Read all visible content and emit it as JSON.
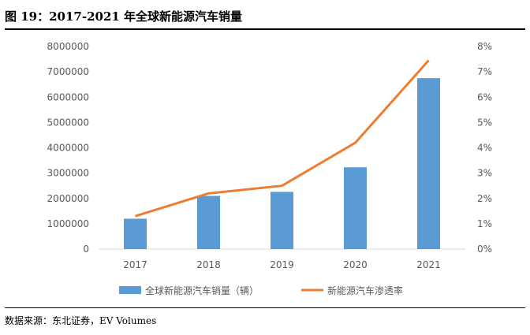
{
  "figure": {
    "title": "图 19：2017-2021 年全球新能源汽车销量",
    "source": "数据来源：东北证券，EV Volumes"
  },
  "colors": {
    "bar": "#5b9bd5",
    "line": "#ed7d31",
    "axis_text": "#595959",
    "axis_line": "#d9d9d9"
  },
  "chart_data": {
    "type": "bar",
    "title": "2017-2021 年全球新能源汽车销量",
    "categories": [
      "2017",
      "2018",
      "2019",
      "2020",
      "2021"
    ],
    "series": [
      {
        "name": "全球新能源汽车销量（辆）",
        "type": "bar",
        "axis": "left",
        "values": [
          1200000,
          2100000,
          2260000,
          3230000,
          6750000
        ]
      },
      {
        "name": "新能源汽车渗透率",
        "type": "line",
        "axis": "right",
        "values": [
          1.3,
          2.2,
          2.5,
          4.2,
          7.45
        ]
      }
    ],
    "y_left": {
      "min": 0,
      "max": 8000000,
      "ticks": [
        "0",
        "1000000",
        "2000000",
        "3000000",
        "4000000",
        "5000000",
        "6000000",
        "7000000",
        "8000000"
      ]
    },
    "y_right": {
      "min": 0,
      "max": 8,
      "ticks": [
        "0%",
        "1%",
        "2%",
        "3%",
        "4%",
        "5%",
        "6%",
        "7%",
        "8%"
      ]
    },
    "grid": false,
    "legend_position": "bottom"
  }
}
